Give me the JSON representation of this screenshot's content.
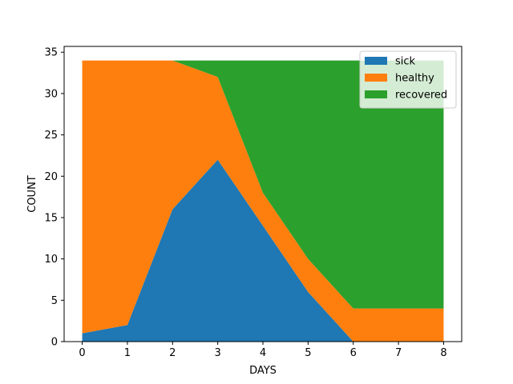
{
  "chart_data": {
    "type": "area",
    "stacked": true,
    "x": [
      0,
      1,
      2,
      3,
      4,
      5,
      6,
      7,
      8
    ],
    "series": [
      {
        "name": "sick",
        "color": "#1f77b4",
        "values": [
          1,
          2,
          16,
          22,
          14,
          6,
          0,
          0,
          0
        ]
      },
      {
        "name": "healthy",
        "color": "#ff7f0e",
        "values": [
          33,
          32,
          18,
          10,
          4,
          4,
          4,
          4,
          4
        ]
      },
      {
        "name": "recovered",
        "color": "#2ca02c",
        "values": [
          0,
          0,
          0,
          2,
          16,
          24,
          30,
          30,
          30
        ]
      }
    ],
    "xlabel": "DAYS",
    "ylabel": "COUNT",
    "xlim": [
      -0.4,
      8.4
    ],
    "ylim": [
      0,
      35.7
    ],
    "xticks": [
      0,
      1,
      2,
      3,
      4,
      5,
      6,
      7,
      8
    ],
    "yticks": [
      0,
      5,
      10,
      15,
      20,
      25,
      30,
      35
    ],
    "grid": false,
    "legend_position": "top-right"
  }
}
